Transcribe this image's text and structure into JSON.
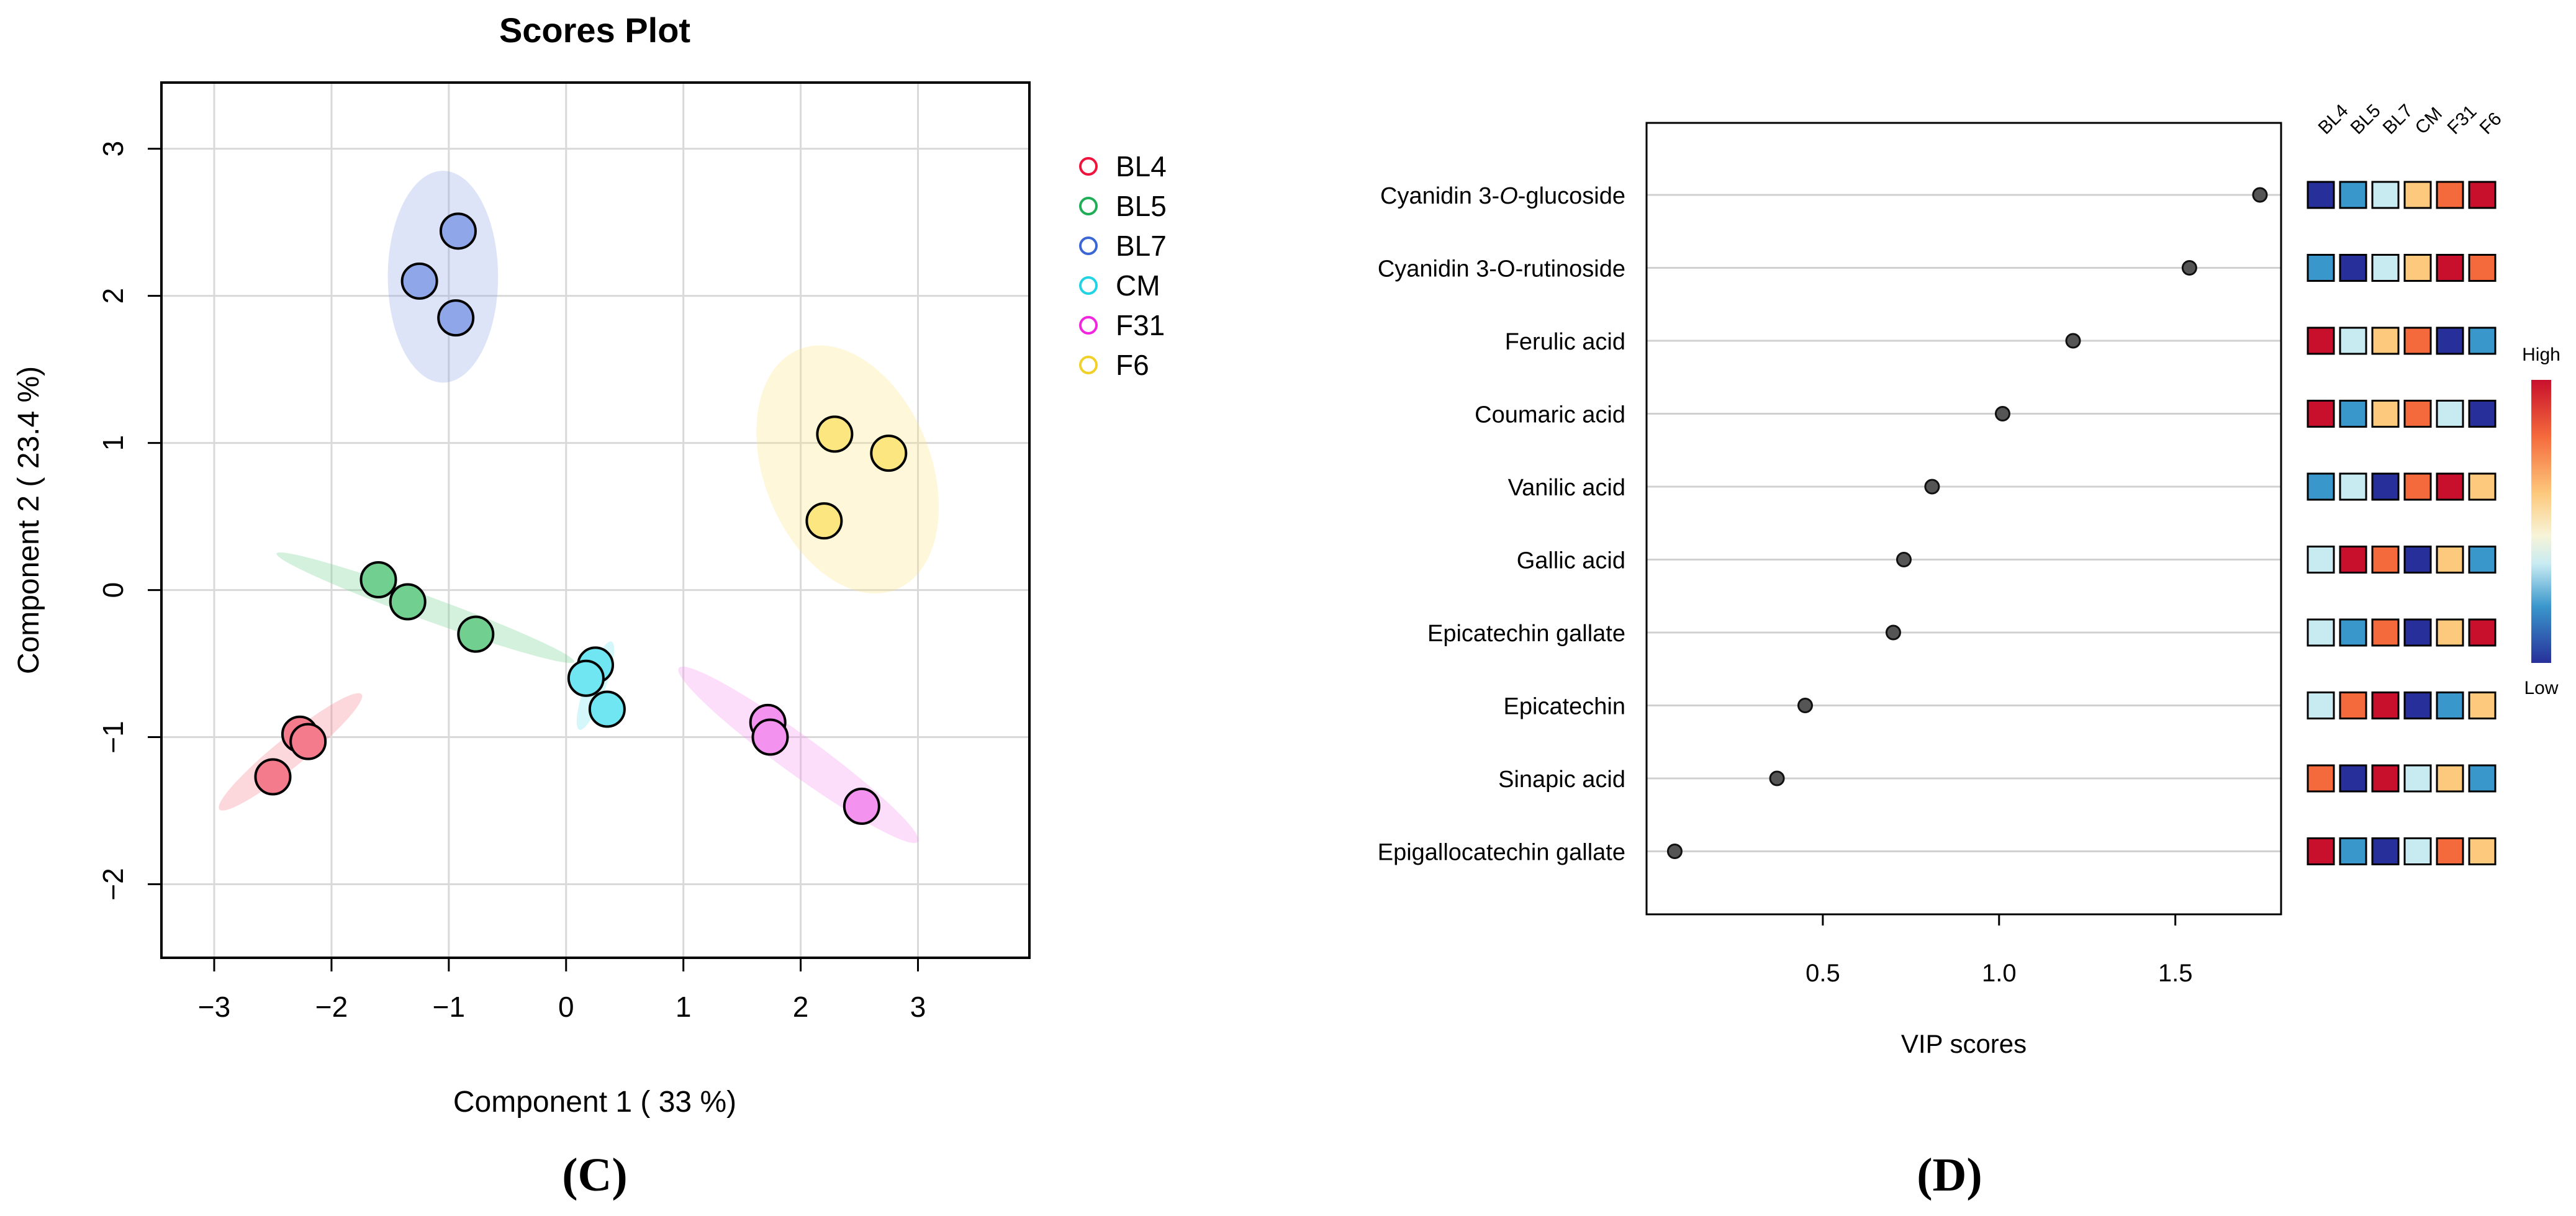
{
  "chart_data": [
    {
      "type": "scatter",
      "title": "Scores Plot",
      "xlabel": "Component 1 ( 33 %)",
      "ylabel": "Component 2 ( 23.4 %)",
      "xlim": [
        -3.45,
        3.95
      ],
      "ylim": [
        -2.5,
        3.45
      ],
      "xticks": [
        -3,
        -2,
        -1,
        0,
        1,
        2,
        3
      ],
      "xtick_labels": [
        "−3",
        "−2",
        "−1",
        "0",
        "1",
        "2",
        "3"
      ],
      "yticks": [
        -2,
        -1,
        0,
        1,
        2,
        3
      ],
      "ytick_labels": [
        "−2",
        "−1",
        "0",
        "1",
        "2",
        "3"
      ],
      "grid": true,
      "legend_position": "right",
      "panel_label": "(C)",
      "series": [
        {
          "name": "BL4",
          "color": "#f0133c",
          "fill": "#f47b8c",
          "points": [
            [
              -2.27,
              -0.98
            ],
            [
              -2.2,
              -1.03
            ],
            [
              -2.5,
              -1.27
            ]
          ],
          "ellipse": {
            "center": [
              -2.35,
              -1.1
            ],
            "semi_axes": [
              0.78,
              0.1
            ],
            "angle_deg": 39
          }
        },
        {
          "name": "BL5",
          "color": "#1fae56",
          "fill": "#71cf8f",
          "points": [
            [
              -1.6,
              0.07
            ],
            [
              -1.35,
              -0.08
            ],
            [
              -0.77,
              -0.3
            ]
          ],
          "ellipse": {
            "center": [
              -1.2,
              -0.12
            ],
            "semi_axes": [
              1.35,
              0.08
            ],
            "angle_deg": -20
          }
        },
        {
          "name": "BL7",
          "color": "#3a66d6",
          "fill": "#8fa7e9",
          "points": [
            [
              -0.92,
              2.44
            ],
            [
              -1.25,
              2.1
            ],
            [
              -0.94,
              1.85
            ]
          ],
          "ellipse": {
            "center": [
              -1.05,
              2.13
            ],
            "semi_axes": [
              0.47,
              0.72
            ],
            "angle_deg": 0
          }
        },
        {
          "name": "CM",
          "color": "#22d3e6",
          "fill": "#6fe6f2",
          "points": [
            [
              0.25,
              -0.51
            ],
            [
              0.17,
              -0.6
            ],
            [
              0.35,
              -0.81
            ]
          ],
          "ellipse": {
            "center": [
              0.25,
              -0.65
            ],
            "semi_axes": [
              0.4,
              0.07
            ],
            "angle_deg": 70
          }
        },
        {
          "name": "F31",
          "color": "#f226e0",
          "fill": "#f493ef",
          "points": [
            [
              1.72,
              -0.9
            ],
            [
              1.74,
              -1.0
            ],
            [
              2.52,
              -1.47
            ]
          ],
          "ellipse": {
            "center": [
              1.98,
              -1.12
            ],
            "semi_axes": [
              1.26,
              0.13
            ],
            "angle_deg": -36
          }
        },
        {
          "name": "F6",
          "color": "#f2d02a",
          "fill": "#fbe680",
          "points": [
            [
              2.29,
              1.06
            ],
            [
              2.75,
              0.93
            ],
            [
              2.2,
              0.47
            ]
          ],
          "ellipse": {
            "center": [
              2.4,
              0.82
            ],
            "semi_axes": [
              0.71,
              0.88
            ],
            "angle_deg": 22
          }
        }
      ]
    },
    {
      "type": "scatter",
      "title": "",
      "xlabel": "VIP scores",
      "ylabel": "",
      "xlim": [
        0.0,
        1.8
      ],
      "xticks": [
        0.5,
        1.0,
        1.5
      ],
      "xtick_labels": [
        "0.5",
        "1.0",
        "1.5"
      ],
      "panel_label": "(D)",
      "compounds": [
        {
          "name_main": "Cyanidin 3-",
          "name_italic": "O",
          "name_tail": "-glucoside",
          "vip": 1.74
        },
        {
          "name_main": "Cyanidin 3-O-rutinoside",
          "name_italic": "",
          "name_tail": "",
          "vip": 1.54
        },
        {
          "name_main": "Ferulic acid",
          "name_italic": "",
          "name_tail": "",
          "vip": 1.21
        },
        {
          "name_main": "Coumaric acid",
          "name_italic": "",
          "name_tail": "",
          "vip": 1.01
        },
        {
          "name_main": "Vanilic acid",
          "name_italic": "",
          "name_tail": "",
          "vip": 0.81
        },
        {
          "name_main": "Gallic acid",
          "name_italic": "",
          "name_tail": "",
          "vip": 0.73
        },
        {
          "name_main": "Epicatechin gallate",
          "name_italic": "",
          "name_tail": "",
          "vip": 0.7
        },
        {
          "name_main": "Epicatechin",
          "name_italic": "",
          "name_tail": "",
          "vip": 0.45
        },
        {
          "name_main": "Sinapic acid",
          "name_italic": "",
          "name_tail": "",
          "vip": 0.37
        },
        {
          "name_main": "Epigallocatechin gallate",
          "name_italic": "",
          "name_tail": "",
          "vip": 0.08
        }
      ],
      "heatmap": {
        "columns": [
          "BL4",
          "BL5",
          "BL7",
          "CM",
          "F31",
          "F6"
        ],
        "palette": {
          "1": "#27309a",
          "2": "#3a97cc",
          "3": "#c8ebf2",
          "4": "#fdc97c",
          "5": "#f56a3c",
          "6": "#c8102c"
        },
        "levels": [
          [
            1,
            2,
            3,
            4,
            5,
            6
          ],
          [
            2,
            1,
            3,
            4,
            6,
            5
          ],
          [
            6,
            3,
            4,
            5,
            1,
            2
          ],
          [
            6,
            2,
            4,
            5,
            3,
            1
          ],
          [
            2,
            3,
            1,
            5,
            6,
            4
          ],
          [
            3,
            6,
            5,
            1,
            4,
            2
          ],
          [
            3,
            2,
            5,
            1,
            4,
            6
          ],
          [
            3,
            5,
            6,
            1,
            2,
            4
          ],
          [
            5,
            1,
            6,
            3,
            4,
            2
          ],
          [
            6,
            2,
            1,
            3,
            5,
            4
          ]
        ],
        "legend_high": "High",
        "legend_low": "Low"
      }
    }
  ]
}
